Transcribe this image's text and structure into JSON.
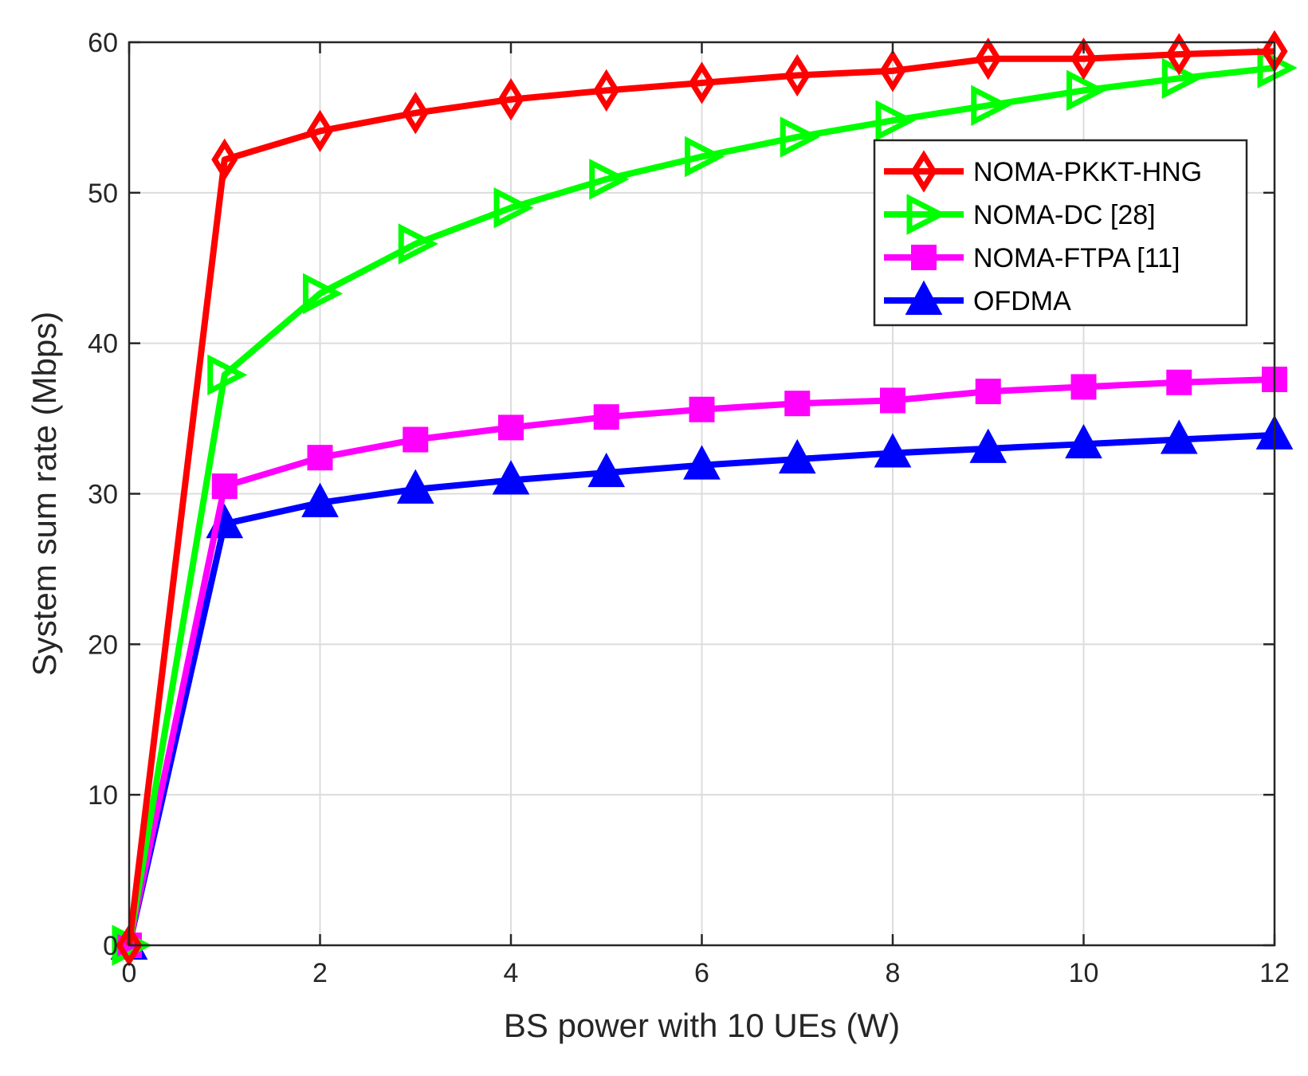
{
  "chart_data": {
    "type": "line",
    "title": "",
    "xlabel": "BS power with 10 UEs (W)",
    "ylabel": "System sum rate (Mbps)",
    "xlim": [
      0,
      12
    ],
    "ylim": [
      0,
      60
    ],
    "xticks": [
      0,
      2,
      4,
      6,
      8,
      10,
      12
    ],
    "yticks": [
      0,
      10,
      20,
      30,
      40,
      50,
      60
    ],
    "grid": true,
    "legend_position": "top-right",
    "x": [
      0,
      1,
      2,
      3,
      4,
      5,
      6,
      7,
      8,
      9,
      10,
      11,
      12
    ],
    "series": [
      {
        "name": "NOMA-PKKT-HNG",
        "color": "#ff0000",
        "marker": "diamond",
        "values": [
          0,
          52.2,
          54.1,
          55.3,
          56.2,
          56.8,
          57.3,
          57.8,
          58.1,
          58.9,
          58.9,
          59.2,
          59.4
        ]
      },
      {
        "name": "NOMA-DC [28]",
        "color": "#00ff00",
        "marker": "triangle-right",
        "values": [
          0,
          37.9,
          43.3,
          46.6,
          49.0,
          50.9,
          52.4,
          53.7,
          54.8,
          55.8,
          56.8,
          57.6,
          58.3
        ]
      },
      {
        "name": "NOMA-FTPA [11]",
        "color": "#ff00ff",
        "marker": "square",
        "values": [
          0,
          30.5,
          32.4,
          33.6,
          34.4,
          35.1,
          35.6,
          36.0,
          36.2,
          36.8,
          37.1,
          37.4,
          37.6
        ]
      },
      {
        "name": "OFDMA",
        "color": "#0000ff",
        "marker": "triangle-up",
        "values": [
          0,
          28.0,
          29.4,
          30.3,
          30.9,
          31.4,
          31.9,
          32.3,
          32.7,
          33.0,
          33.3,
          33.6,
          33.9
        ]
      }
    ]
  }
}
